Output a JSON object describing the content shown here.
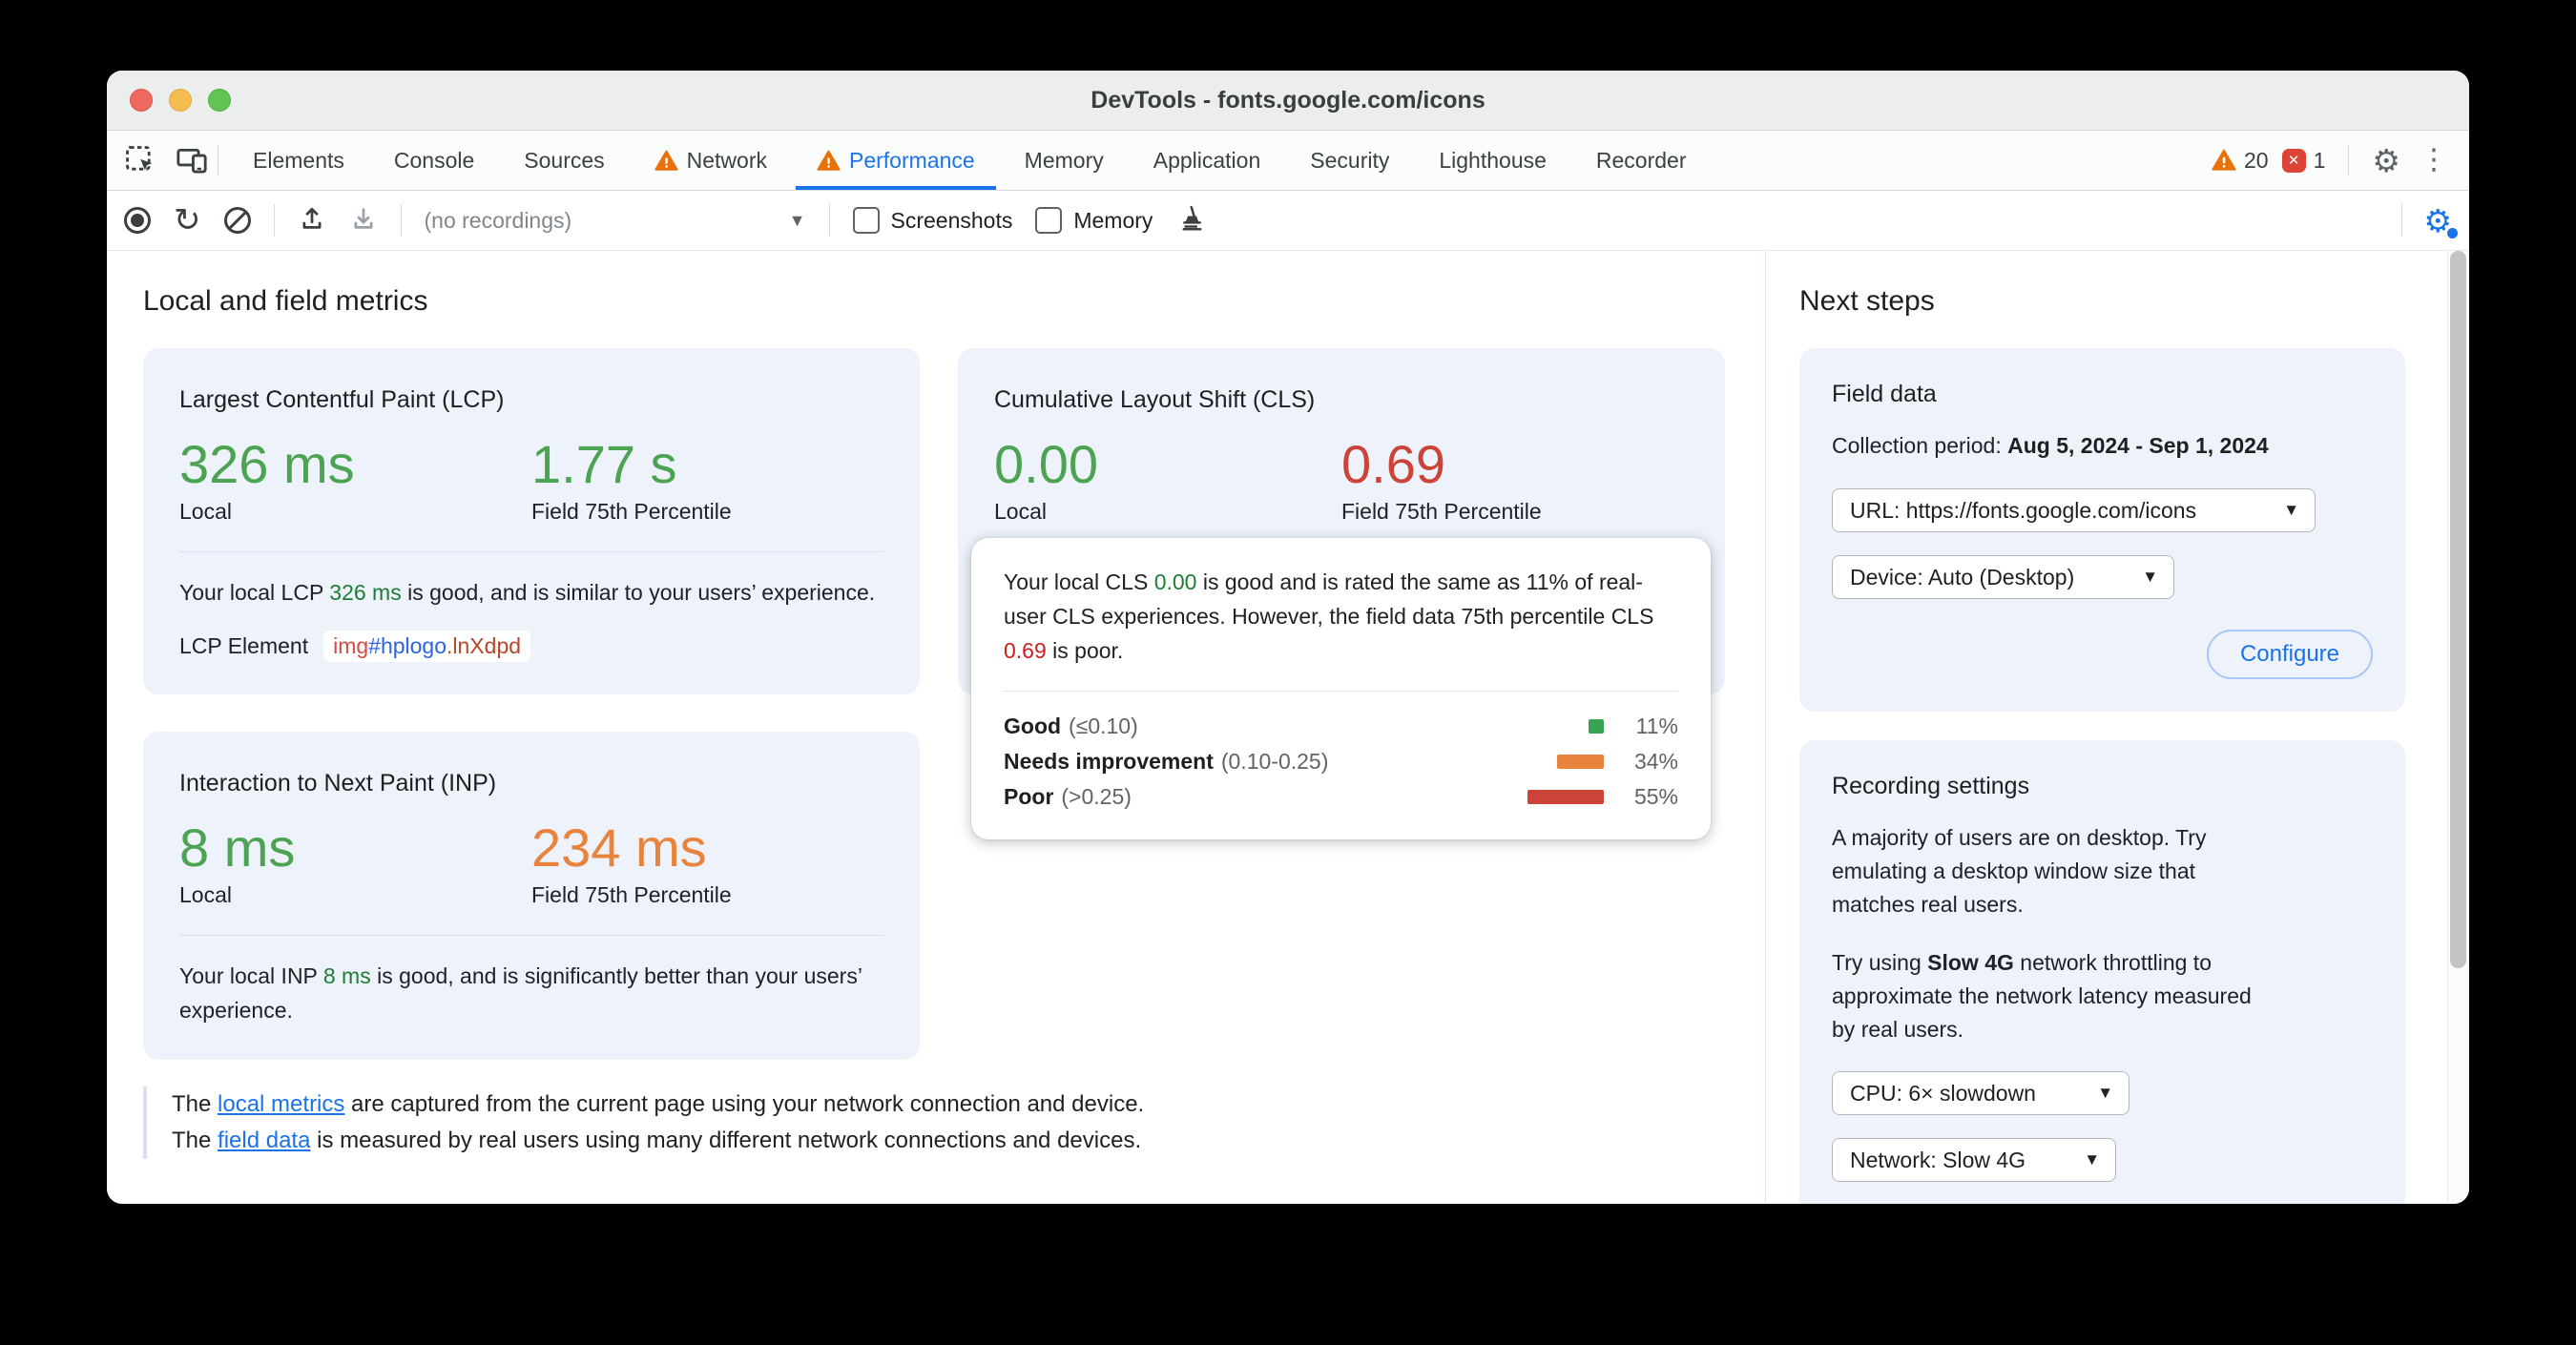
{
  "window": {
    "title": "DevTools - fonts.google.com/icons"
  },
  "tabs": {
    "items": [
      {
        "label": "Elements"
      },
      {
        "label": "Console"
      },
      {
        "label": "Sources"
      },
      {
        "label": "Network",
        "warning": true
      },
      {
        "label": "Performance",
        "warning": true,
        "active": true
      },
      {
        "label": "Memory"
      },
      {
        "label": "Application"
      },
      {
        "label": "Security"
      },
      {
        "label": "Lighthouse"
      },
      {
        "label": "Recorder"
      }
    ],
    "warning_count": "20",
    "error_count": "1",
    "error_glyph": "✕"
  },
  "icons": {
    "gear": "⚙",
    "kebab": "⋮",
    "reload": "↻",
    "dropdown_arrow": "▼",
    "small_arrow": "▾"
  },
  "toolbar": {
    "recordings_select": "(no recordings)",
    "screenshots_label": "Screenshots",
    "memory_label": "Memory"
  },
  "main": {
    "heading": "Local and field metrics",
    "lcp": {
      "title": "Largest Contentful Paint (LCP)",
      "local_value": "326 ms",
      "local_label": "Local",
      "field_value": "1.77 s",
      "field_label": "Field 75th Percentile",
      "desc_pre": "Your local LCP ",
      "desc_value": "326 ms",
      "desc_post": " is good, and is similar to your users’ experience.",
      "element_label": "LCP Element",
      "element_tag": "img",
      "element_id": "#hplogo",
      "element_class": ".lnXdpd"
    },
    "cls": {
      "title": "Cumulative Layout Shift (CLS)",
      "local_value": "0.00",
      "local_label": "Local",
      "field_value": "0.69",
      "field_label": "Field 75th Percentile"
    },
    "inp": {
      "title": "Interaction to Next Paint (INP)",
      "local_value": "8 ms",
      "local_label": "Local",
      "field_value": "234 ms",
      "field_label": "Field 75th Percentile",
      "desc_pre": "Your local INP ",
      "desc_value": "8 ms",
      "desc_post": " is good, and is significantly better than your users’ experience."
    },
    "footer": {
      "line1_pre": "The ",
      "line1_link": "local metrics",
      "line1_post": " are captured from the current page using your network connection and device.",
      "line2_pre": "The ",
      "line2_link": "field data",
      "line2_post": " is measured by real users using many different network connections and devices."
    }
  },
  "cls_tooltip": {
    "text_pre": "Your local CLS ",
    "text_good_value": "0.00",
    "text_mid": " is good and is rated the same as 11% of real-user CLS experiences. However, the field data 75th percentile CLS ",
    "text_poor_value": "0.69",
    "text_post": " is poor.",
    "rows": [
      {
        "label": "Good",
        "range": "(≤0.10)",
        "pct": "11%",
        "value": 11,
        "color": "#37a353"
      },
      {
        "label": "Needs improvement",
        "range": "(0.10-0.25)",
        "pct": "34%",
        "value": 34,
        "color": "#e8823c"
      },
      {
        "label": "Poor",
        "range": "(>0.25)",
        "pct": "55%",
        "value": 55,
        "color": "#cc4437"
      }
    ]
  },
  "sidebar": {
    "heading": "Next steps",
    "field_data": {
      "title": "Field data",
      "collection_label": "Collection period: ",
      "collection_dates": "Aug 5, 2024 - Sep 1, 2024",
      "url_select": "URL: https://fonts.google.com/icons",
      "device_select": "Device: Auto (Desktop)",
      "configure_label": "Configure"
    },
    "recording": {
      "title": "Recording settings",
      "p1": "A majority of users are on desktop. Try\nemulating a desktop window size that\nmatches real users.",
      "p2_pre": "Try using ",
      "p2_bold": "Slow 4G",
      "p2_post": " network throttling to\napproximate the network latency measured\nby real users.",
      "cpu_select": "CPU: 6× slowdown",
      "network_select": "Network: Slow 4G"
    }
  },
  "colors": {
    "accent_blue": "#1a73e8",
    "good_green": "#4ca452",
    "poor_red": "#cc4437",
    "improve_orange": "#e8833d",
    "card_bg": "#edf2fb"
  }
}
